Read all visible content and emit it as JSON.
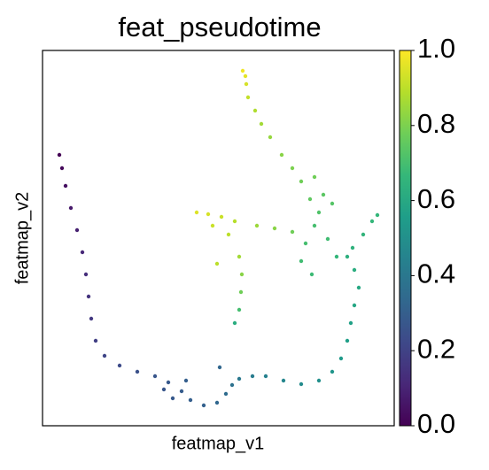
{
  "chart_data": {
    "type": "scatter",
    "title": "feat_pseudotime",
    "x_label": "featmap_v1",
    "y_label": "featmap_v2",
    "colormap": "viridis",
    "x": [
      19,
      22,
      26,
      32,
      39,
      45,
      49,
      52,
      55,
      60,
      70,
      87,
      107,
      127,
      142,
      157,
      167,
      182,
      197,
      147,
      137,
      162,
      207,
      214,
      200,
      222,
      237,
      252,
      272,
      292,
      312,
      327,
      337,
      344,
      348,
      352,
      357,
      352,
      344,
      350,
      362,
      372,
      378,
      332,
      322,
      307,
      297,
      312,
      327,
      317,
      302,
      292,
      307,
      282,
      270,
      257,
      247,
      240,
      232,
      230,
      226,
      229,
      304,
      292,
      282,
      262,
      242,
      217,
      202,
      187,
      174,
      192,
      210,
      197,
      222,
      225,
      224,
      222,
      217
    ],
    "y": [
      306,
      291,
      271,
      246,
      221,
      196,
      171,
      146,
      121,
      96,
      79,
      68,
      61,
      56,
      49,
      39,
      29,
      23,
      26,
      31,
      41,
      51,
      36,
      46,
      66,
      53,
      56,
      56,
      51,
      47,
      51,
      61,
      76,
      96,
      116,
      136,
      156,
      176,
      191,
      201,
      216,
      231,
      238,
      191,
      211,
      226,
      206,
      241,
      251,
      261,
      256,
      276,
      281,
      291,
      306,
      326,
      341,
      356,
      371,
      386,
      401,
      395,
      171,
      186,
      219,
      223,
      226,
      231,
      236,
      239,
      241,
      226,
      216,
      183,
      191,
      171,
      151,
      131,
      116
    ],
    "values": [
      0.0,
      0.02,
      0.04,
      0.07,
      0.09,
      0.11,
      0.13,
      0.15,
      0.17,
      0.19,
      0.21,
      0.23,
      0.25,
      0.27,
      0.28,
      0.29,
      0.3,
      0.31,
      0.33,
      0.28,
      0.27,
      0.3,
      0.35,
      0.37,
      0.33,
      0.4,
      0.42,
      0.44,
      0.46,
      0.48,
      0.5,
      0.52,
      0.54,
      0.56,
      0.57,
      0.59,
      0.6,
      0.62,
      0.63,
      0.64,
      0.65,
      0.66,
      0.66,
      0.66,
      0.69,
      0.7,
      0.7,
      0.72,
      0.73,
      0.74,
      0.75,
      0.78,
      0.78,
      0.8,
      0.82,
      0.84,
      0.86,
      0.88,
      0.91,
      0.94,
      0.98,
      0.96,
      0.68,
      0.69,
      0.78,
      0.82,
      0.85,
      0.89,
      0.92,
      0.94,
      0.95,
      0.92,
      0.9,
      0.9,
      0.86,
      0.82,
      0.78,
      0.7,
      0.62
    ],
    "xlim": [
      0,
      397
    ],
    "ylim": [
      0,
      424
    ],
    "clim": [
      0,
      1
    ],
    "cticks": [
      {
        "value": 0,
        "label": "0.0"
      },
      {
        "value": 0.2,
        "label": "0.2"
      },
      {
        "value": 0.4,
        "label": "0.4"
      },
      {
        "value": 0.6,
        "label": "0.6"
      },
      {
        "value": 0.8,
        "label": "0.8"
      },
      {
        "value": 1,
        "label": "1.0"
      }
    ]
  }
}
